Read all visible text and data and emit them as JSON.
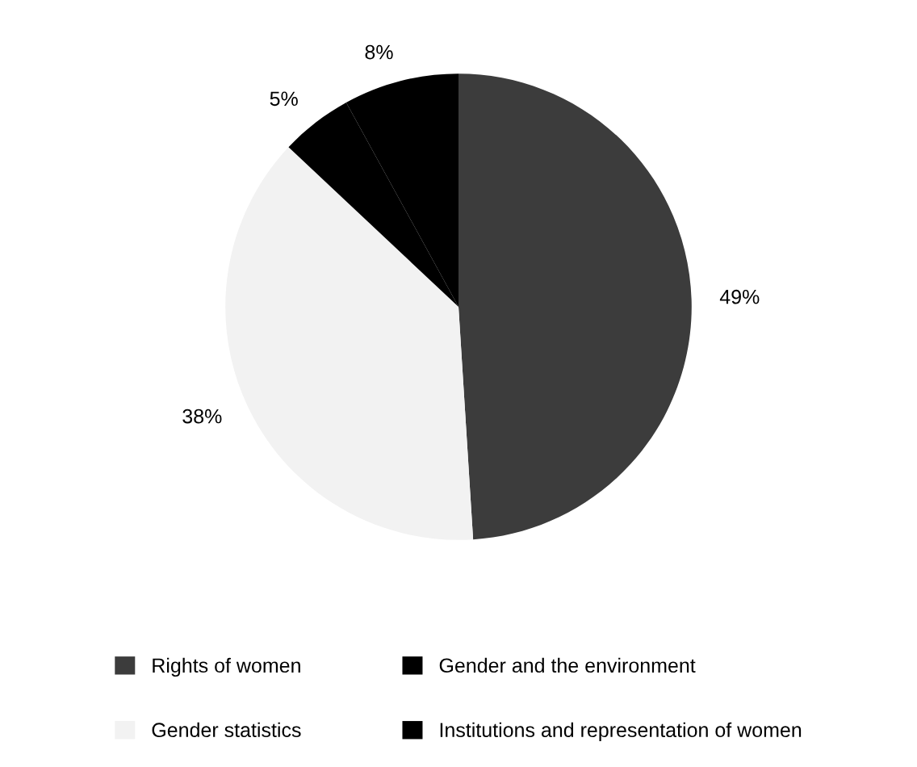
{
  "chart_data": {
    "type": "pie",
    "categories": [
      "Rights of women",
      "Gender statistics",
      "Gender and the environment",
      "Institutions and representation of women"
    ],
    "values": [
      49,
      38,
      5,
      8
    ],
    "colors": [
      "#3c3c3c",
      "#f2f2f2",
      "#000000",
      "#000000"
    ],
    "value_labels": [
      "49%",
      "38%",
      "5%",
      "8%"
    ],
    "legend": "bottom"
  }
}
